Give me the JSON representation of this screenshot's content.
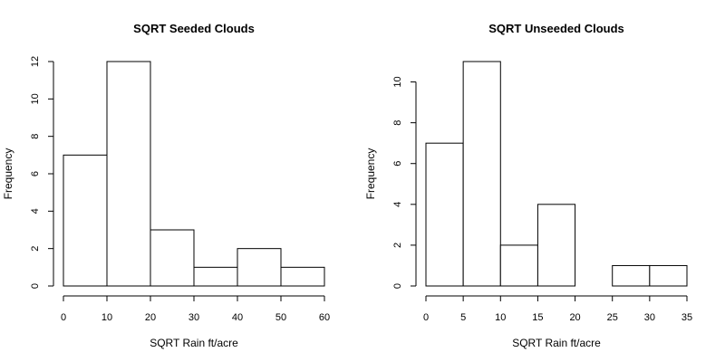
{
  "chart_data": [
    {
      "type": "bar",
      "title": "SQRT Seeded Clouds",
      "xlabel": "SQRT Rain ft/acre",
      "ylabel": "Frequency",
      "bin_edges": [
        0,
        10,
        20,
        30,
        40,
        50,
        60
      ],
      "values": [
        7,
        12,
        3,
        1,
        2,
        1
      ],
      "xlim": [
        0,
        60
      ],
      "ylim": [
        0,
        12
      ],
      "xticks": [
        0,
        10,
        20,
        30,
        40,
        50,
        60
      ],
      "yticks": [
        0,
        2,
        4,
        6,
        8,
        10,
        12
      ]
    },
    {
      "type": "bar",
      "title": "SQRT Unseeded Clouds",
      "xlabel": "SQRT Rain ft/acre",
      "ylabel": "Frequency",
      "bin_edges": [
        0,
        5,
        10,
        15,
        20,
        25,
        30,
        35
      ],
      "values": [
        7,
        11,
        2,
        4,
        0,
        1,
        1
      ],
      "xlim": [
        0,
        35
      ],
      "ylim": [
        0,
        11
      ],
      "xticks": [
        0,
        5,
        10,
        15,
        20,
        25,
        30,
        35
      ],
      "yticks": [
        0,
        2,
        4,
        6,
        8,
        10
      ]
    }
  ]
}
